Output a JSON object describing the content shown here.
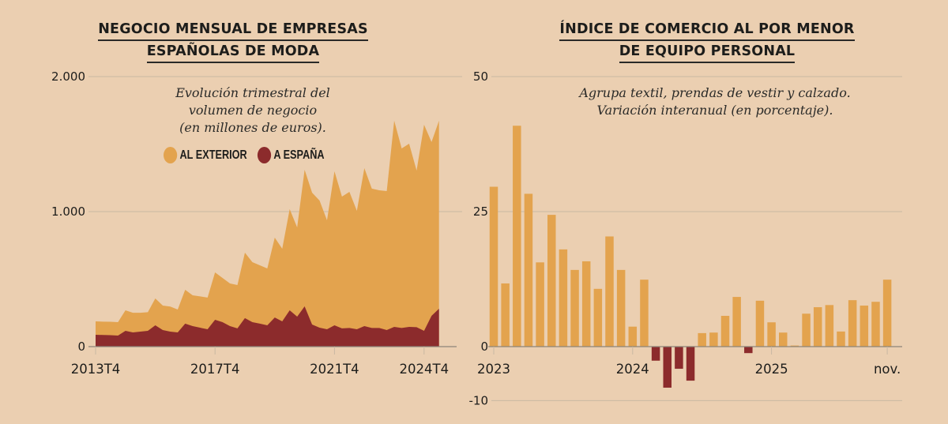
{
  "colors": {
    "background": "#ebcfb1",
    "exterior": "#e3a34e",
    "espana": "#8c2b2c",
    "positive_bar": "#e3a34e",
    "negative_bar": "#8c2b2c",
    "gridline": "#c9b8a3",
    "axis": "#8d8579"
  },
  "chart_data": [
    {
      "type": "area",
      "stacked": true,
      "title": "NEGOCIO MENSUAL DE EMPRESAS ESPAÑOLAS DE MODA",
      "title_lines": [
        "NEGOCIO MENSUAL DE EMPRESAS",
        "ESPAÑOLAS DE MODA"
      ],
      "subtitle_lines": [
        "Evolución trimestral del",
        "volumen de negocio",
        "(en millones de euros)."
      ],
      "xlabel": "",
      "ylabel": "",
      "ylim": [
        0,
        2000
      ],
      "yticks": [
        0,
        1000,
        2000
      ],
      "ytick_labels": [
        "0",
        "1.000",
        "2.000"
      ],
      "grid": true,
      "x_start": "2013T4",
      "x_end": "2025T2",
      "xtick_labels": [
        {
          "label": "2013T4",
          "index": 0
        },
        {
          "label": "2017T4",
          "index": 16
        },
        {
          "label": "2021T4",
          "index": 32
        },
        {
          "label": "2024T4",
          "index": 44
        }
      ],
      "legend": [
        {
          "name": "AL EXTERIOR",
          "color": "#e3a34e"
        },
        {
          "name": "A ESPAÑA",
          "color": "#8c2b2c"
        }
      ],
      "legend_position": "top-center",
      "total": [
        187,
        185,
        184,
        181,
        269,
        251,
        251,
        255,
        357,
        304,
        297,
        275,
        421,
        380,
        372,
        363,
        550,
        509,
        468,
        456,
        696,
        626,
        602,
        579,
        807,
        725,
        1018,
        883,
        1310,
        1140,
        1082,
        936,
        1298,
        1111,
        1146,
        1006,
        1322,
        1170,
        1158,
        1152,
        1673,
        1468,
        1503,
        1304,
        1643,
        1515,
        1673
      ],
      "series": [
        {
          "name": "A ESPAÑA",
          "values": [
            88,
            86,
            85,
            82,
            117,
            105,
            111,
            117,
            158,
            123,
            111,
            105,
            170,
            152,
            140,
            129,
            199,
            181,
            152,
            135,
            211,
            181,
            170,
            158,
            216,
            187,
            269,
            222,
            298,
            164,
            140,
            129,
            158,
            135,
            138,
            129,
            152,
            138,
            138,
            123,
            146,
            138,
            146,
            144,
            117,
            228,
            281
          ]
        },
        {
          "name": "AL EXTERIOR",
          "values": [
            99,
            99,
            99,
            99,
            152,
            146,
            140,
            138,
            199,
            181,
            186,
            170,
            251,
            228,
            232,
            234,
            351,
            328,
            316,
            321,
            485,
            445,
            432,
            421,
            591,
            538,
            749,
            661,
            1012,
            976,
            942,
            807,
            1140,
            976,
            1008,
            877,
            1170,
            1032,
            1020,
            1029,
            1527,
            1330,
            1357,
            1160,
            1526,
            1287,
            1392
          ]
        }
      ]
    },
    {
      "type": "bar",
      "title": "ÍNDICE DE COMERCIO AL POR MENOR DE EQUIPO PERSONAL",
      "title_lines": [
        "ÍNDICE DE COMERCIO AL POR MENOR",
        "DE EQUIPO PERSONAL"
      ],
      "subtitle_lines": [
        "Agrupa textil, prendas de vestir y calzado.",
        "Variación interanual (en porcentaje)."
      ],
      "xlabel": "",
      "ylabel": "",
      "ylim": [
        -10,
        50
      ],
      "yticks": [
        -10,
        0,
        25,
        50
      ],
      "ytick_labels": [
        "-10",
        "0",
        "25",
        "50"
      ],
      "grid": true,
      "xtick_labels": [
        {
          "label": "2023",
          "index": 0
        },
        {
          "label": "2024",
          "index": 12
        },
        {
          "label": "2025",
          "index": 24
        },
        {
          "label": "nov.",
          "index": 34
        }
      ],
      "values": [
        29.6,
        11.7,
        40.9,
        28.3,
        15.6,
        24.4,
        18.0,
        14.2,
        15.8,
        10.7,
        20.4,
        14.2,
        3.7,
        12.4,
        -2.6,
        -7.6,
        -4.1,
        -6.3,
        2.5,
        2.6,
        5.7,
        9.2,
        -1.2,
        8.5,
        4.5,
        2.6,
        0.2,
        6.1,
        7.3,
        7.7,
        2.8,
        8.6,
        7.6,
        8.3,
        12.4
      ]
    }
  ]
}
